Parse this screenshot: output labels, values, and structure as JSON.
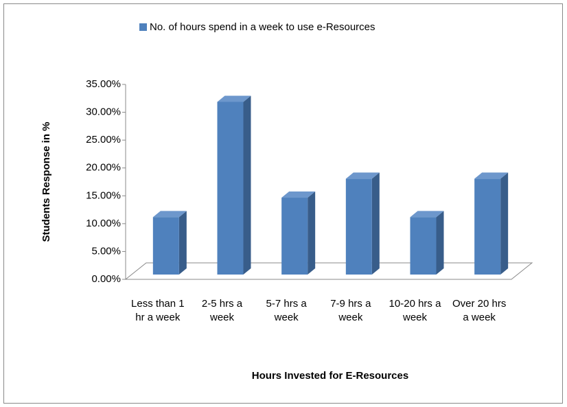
{
  "chart_data": {
    "type": "bar3d",
    "legend": "No. of hours spend in a week to use e-Resources",
    "x_label": "Hours Invested for E-Resources",
    "y_label": "Students Response in %",
    "categories": [
      "Less than 1 hr a week",
      "2-5 hrs a week",
      "5-7 hrs a week",
      "7-9 hrs a week",
      "10-20 hrs a week",
      "Over 20 hrs a week"
    ],
    "values": [
      10.3,
      31.0,
      13.8,
      17.2,
      10.3,
      17.2
    ],
    "color": "#4f81bd",
    "ylim": [
      0,
      35
    ],
    "yticks": [
      {
        "value": 0,
        "label": "0.00%"
      },
      {
        "value": 5,
        "label": "5.00%"
      },
      {
        "value": 10,
        "label": "10.00%"
      },
      {
        "value": 15,
        "label": "15.00%"
      },
      {
        "value": 20,
        "label": "20.00%"
      },
      {
        "value": 25,
        "label": "25.00%"
      },
      {
        "value": 30,
        "label": "30.00%"
      },
      {
        "value": 35,
        "label": "35.00%"
      }
    ]
  }
}
